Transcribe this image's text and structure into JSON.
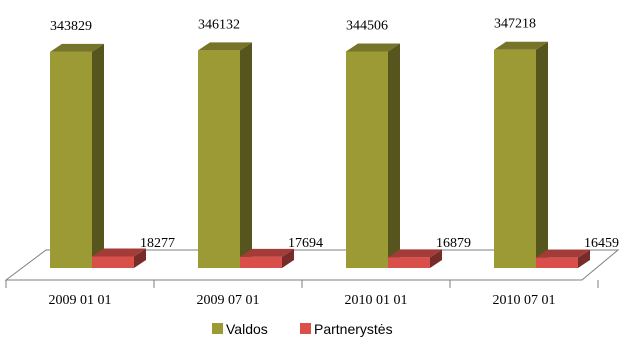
{
  "chart_data": {
    "type": "bar",
    "categories": [
      "2009 01 01",
      "2009 07 01",
      "2010 01 01",
      "2010 07 01"
    ],
    "series": [
      {
        "name": "Valdos",
        "values": [
          343829,
          346132,
          344506,
          347218
        ],
        "color": "#9c9a35"
      },
      {
        "name": "Partnerystės",
        "values": [
          18277,
          17694,
          16879,
          16459
        ],
        "color": "#d9504a"
      }
    ],
    "title": "",
    "xlabel": "",
    "ylabel": "",
    "ylim": [
      0,
      350000
    ],
    "grid": false,
    "three_d": true,
    "legend_position": "bottom"
  }
}
